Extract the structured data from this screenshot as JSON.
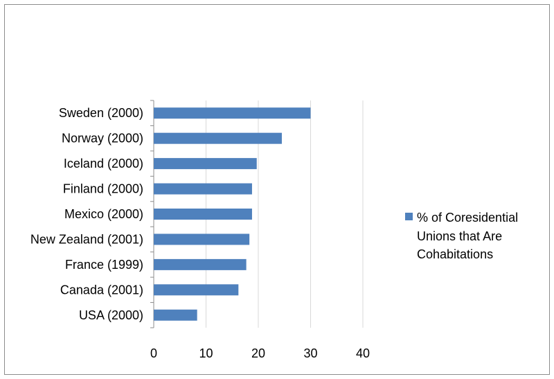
{
  "chart_data": {
    "type": "bar",
    "orientation": "horizontal",
    "categories": [
      "Sweden (2000)",
      "Norway (2000)",
      "Iceland (2000)",
      "Finland (2000)",
      "Mexico (2000)",
      "New Zealand (2001)",
      "France (1999)",
      "Canada (2001)",
      "USA (2000)"
    ],
    "series": [
      {
        "name": "% of Coresidential Unions that Are Cohabitations",
        "values": [
          30,
          24.5,
          19.7,
          18.8,
          18.8,
          18.3,
          17.7,
          16.2,
          8.3
        ],
        "color": "#4f81bd"
      }
    ],
    "xlim": [
      0,
      40
    ],
    "xticks": [
      0,
      10,
      20,
      30,
      40
    ],
    "grid": true,
    "legend_position": "right",
    "legend_lines": [
      "% of Coresidential",
      "Unions that Are",
      "Cohabitations"
    ]
  }
}
